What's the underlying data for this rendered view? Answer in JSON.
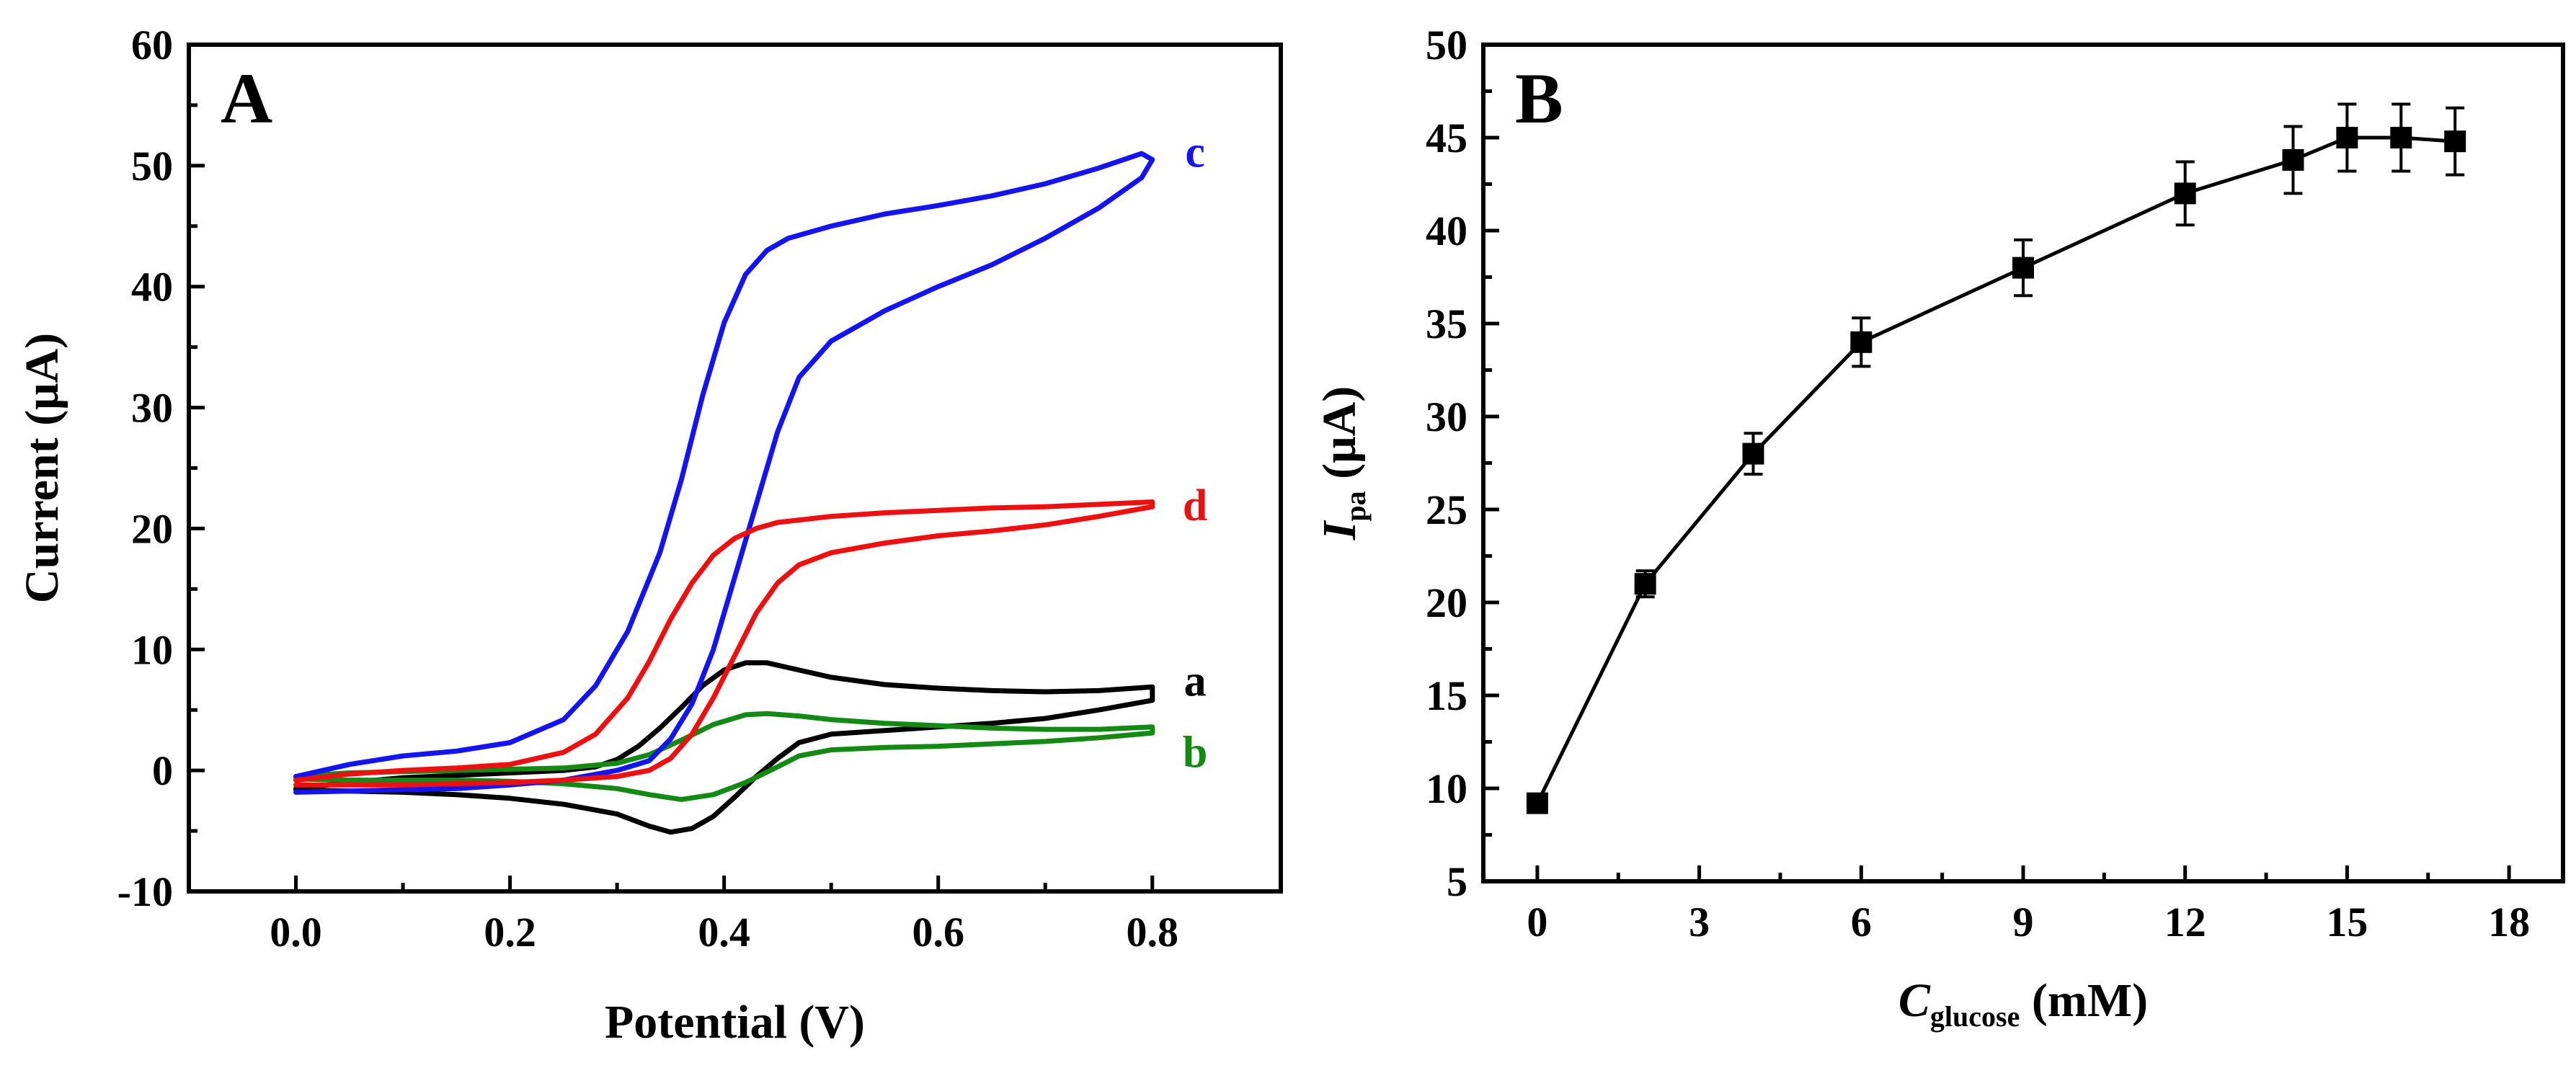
{
  "chart_data": [
    {
      "panel": "A",
      "type": "line",
      "xlabel": "Potential (V)",
      "ylabel": "Current (μA)",
      "xlim": [
        -0.1,
        0.92
      ],
      "ylim": [
        -10,
        60
      ],
      "xticks": [
        0.0,
        0.2,
        0.4,
        0.6,
        0.8
      ],
      "xtick_labels": [
        "0.0",
        "0.2",
        "0.4",
        "0.6",
        "0.8"
      ],
      "yticks": [
        -10,
        0,
        10,
        20,
        30,
        40,
        50,
        60
      ],
      "ytick_labels": [
        "-10",
        "0",
        "10",
        "20",
        "30",
        "40",
        "50",
        "60"
      ],
      "grid": false,
      "series": [
        {
          "name": "a",
          "color": "#000000",
          "x": [
            0.0,
            0.05,
            0.1,
            0.15,
            0.2,
            0.25,
            0.28,
            0.3,
            0.32,
            0.34,
            0.36,
            0.38,
            0.4,
            0.42,
            0.44,
            0.46,
            0.5,
            0.55,
            0.6,
            0.65,
            0.7,
            0.75,
            0.8,
            0.8,
            0.75,
            0.7,
            0.65,
            0.6,
            0.55,
            0.5,
            0.47,
            0.45,
            0.43,
            0.41,
            0.39,
            0.37,
            0.35,
            0.33,
            0.3,
            0.25,
            0.2,
            0.15,
            0.1,
            0.05,
            0.0
          ],
          "y": [
            -1.5,
            -1.0,
            -0.6,
            -0.4,
            -0.2,
            0.0,
            0.3,
            0.9,
            2.0,
            3.5,
            5.2,
            7.0,
            8.3,
            8.9,
            8.9,
            8.5,
            7.7,
            7.1,
            6.8,
            6.6,
            6.5,
            6.6,
            6.9,
            5.8,
            5.0,
            4.3,
            3.9,
            3.6,
            3.3,
            3.0,
            2.3,
            1.0,
            -0.5,
            -2.2,
            -3.8,
            -4.8,
            -5.1,
            -4.6,
            -3.6,
            -2.8,
            -2.3,
            -2.0,
            -1.8,
            -1.7,
            -1.6
          ]
        },
        {
          "name": "b",
          "color": "#138a13",
          "x": [
            0.0,
            0.05,
            0.1,
            0.15,
            0.2,
            0.25,
            0.3,
            0.33,
            0.36,
            0.39,
            0.42,
            0.44,
            0.47,
            0.5,
            0.55,
            0.6,
            0.65,
            0.7,
            0.75,
            0.8,
            0.8,
            0.75,
            0.7,
            0.65,
            0.6,
            0.55,
            0.5,
            0.47,
            0.45,
            0.42,
            0.39,
            0.36,
            0.33,
            0.3,
            0.25,
            0.2,
            0.15,
            0.1,
            0.05,
            0.0
          ],
          "y": [
            -0.5,
            -0.2,
            -0.1,
            0.0,
            0.1,
            0.2,
            0.6,
            1.3,
            2.5,
            3.8,
            4.6,
            4.7,
            4.5,
            4.2,
            3.9,
            3.7,
            3.5,
            3.4,
            3.4,
            3.6,
            3.1,
            2.7,
            2.4,
            2.2,
            2.0,
            1.9,
            1.7,
            1.2,
            0.3,
            -1.0,
            -2.0,
            -2.4,
            -2.0,
            -1.5,
            -1.1,
            -0.9,
            -0.8,
            -0.8,
            -0.8,
            -0.7
          ]
        },
        {
          "name": "c",
          "color": "#1414f0",
          "x": [
            0.0,
            0.05,
            0.1,
            0.15,
            0.2,
            0.25,
            0.28,
            0.31,
            0.34,
            0.36,
            0.38,
            0.4,
            0.42,
            0.44,
            0.46,
            0.5,
            0.55,
            0.6,
            0.65,
            0.7,
            0.75,
            0.79,
            0.8,
            0.79,
            0.75,
            0.7,
            0.65,
            0.6,
            0.55,
            0.5,
            0.47,
            0.45,
            0.43,
            0.41,
            0.39,
            0.37,
            0.35,
            0.33,
            0.3,
            0.25,
            0.2,
            0.15,
            0.1,
            0.05,
            0.0
          ],
          "y": [
            -0.5,
            0.5,
            1.2,
            1.6,
            2.3,
            4.2,
            7.0,
            11.5,
            18.0,
            24.0,
            31.0,
            37.0,
            41.0,
            43.0,
            44.0,
            45.0,
            46.0,
            46.7,
            47.5,
            48.5,
            49.8,
            51.0,
            50.5,
            49.0,
            46.5,
            44.0,
            41.8,
            40.0,
            38.0,
            35.5,
            32.5,
            28.0,
            22.0,
            16.0,
            10.0,
            5.5,
            2.6,
            0.8,
            0.0,
            -0.8,
            -1.2,
            -1.5,
            -1.6,
            -1.7,
            -1.8
          ]
        },
        {
          "name": "d",
          "color": "#ee1010",
          "x": [
            0.0,
            0.05,
            0.1,
            0.15,
            0.2,
            0.25,
            0.28,
            0.31,
            0.33,
            0.35,
            0.37,
            0.39,
            0.41,
            0.43,
            0.45,
            0.5,
            0.55,
            0.6,
            0.65,
            0.7,
            0.75,
            0.8,
            0.8,
            0.75,
            0.7,
            0.65,
            0.6,
            0.55,
            0.5,
            0.47,
            0.45,
            0.43,
            0.41,
            0.39,
            0.37,
            0.35,
            0.33,
            0.3,
            0.25,
            0.2,
            0.15,
            0.1,
            0.05,
            0.0
          ],
          "y": [
            -0.8,
            -0.3,
            0.0,
            0.2,
            0.5,
            1.5,
            3.0,
            6.0,
            9.0,
            12.5,
            15.5,
            17.8,
            19.2,
            20.0,
            20.5,
            21.0,
            21.3,
            21.5,
            21.7,
            21.8,
            22.0,
            22.2,
            21.8,
            21.0,
            20.3,
            19.8,
            19.4,
            18.8,
            18.0,
            17.0,
            15.5,
            13.0,
            9.5,
            6.0,
            3.0,
            1.0,
            0.0,
            -0.5,
            -0.8,
            -1.0,
            -1.1,
            -1.2,
            -1.2,
            -1.2
          ]
        }
      ],
      "curve_labels": [
        {
          "text": "c",
          "x": 0.84,
          "y": 51.2,
          "color": "#1414f0"
        },
        {
          "text": "d",
          "x": 0.84,
          "y": 22.0,
          "color": "#ee1010"
        },
        {
          "text": "a",
          "x": 0.84,
          "y": 7.5,
          "color": "#000000"
        },
        {
          "text": "b",
          "x": 0.84,
          "y": 1.6,
          "color": "#138a13"
        }
      ]
    },
    {
      "panel": "B",
      "type": "line",
      "xlabel": "C",
      "xlabel_sub": "glucose",
      "xlabel_unit": " (mM)",
      "ylabel": "I",
      "ylabel_sub": "pa",
      "ylabel_unit": " (μA)",
      "xlim": [
        -1,
        19
      ],
      "ylim": [
        5,
        50
      ],
      "xticks": [
        0,
        3,
        6,
        9,
        12,
        15,
        18
      ],
      "xtick_labels": [
        "0",
        "3",
        "6",
        "9",
        "12",
        "15",
        "18"
      ],
      "yticks": [
        5,
        10,
        15,
        20,
        25,
        30,
        35,
        40,
        45,
        50
      ],
      "ytick_labels": [
        "5",
        "10",
        "15",
        "20",
        "25",
        "30",
        "35",
        "40",
        "45",
        "50"
      ],
      "grid": false,
      "series": [
        {
          "color": "#000000",
          "x": [
            0,
            2,
            4,
            6,
            9,
            12,
            14,
            15,
            16,
            17
          ],
          "y": [
            9.2,
            21.0,
            28.0,
            34.0,
            38.0,
            42.0,
            43.8,
            45.0,
            45.0,
            44.8
          ],
          "err": [
            0.4,
            0.7,
            1.1,
            1.3,
            1.5,
            1.7,
            1.8,
            1.8,
            1.8,
            1.8
          ]
        }
      ]
    }
  ],
  "panels": {
    "A": {
      "letter": "A"
    },
    "B": {
      "letter": "B"
    }
  }
}
